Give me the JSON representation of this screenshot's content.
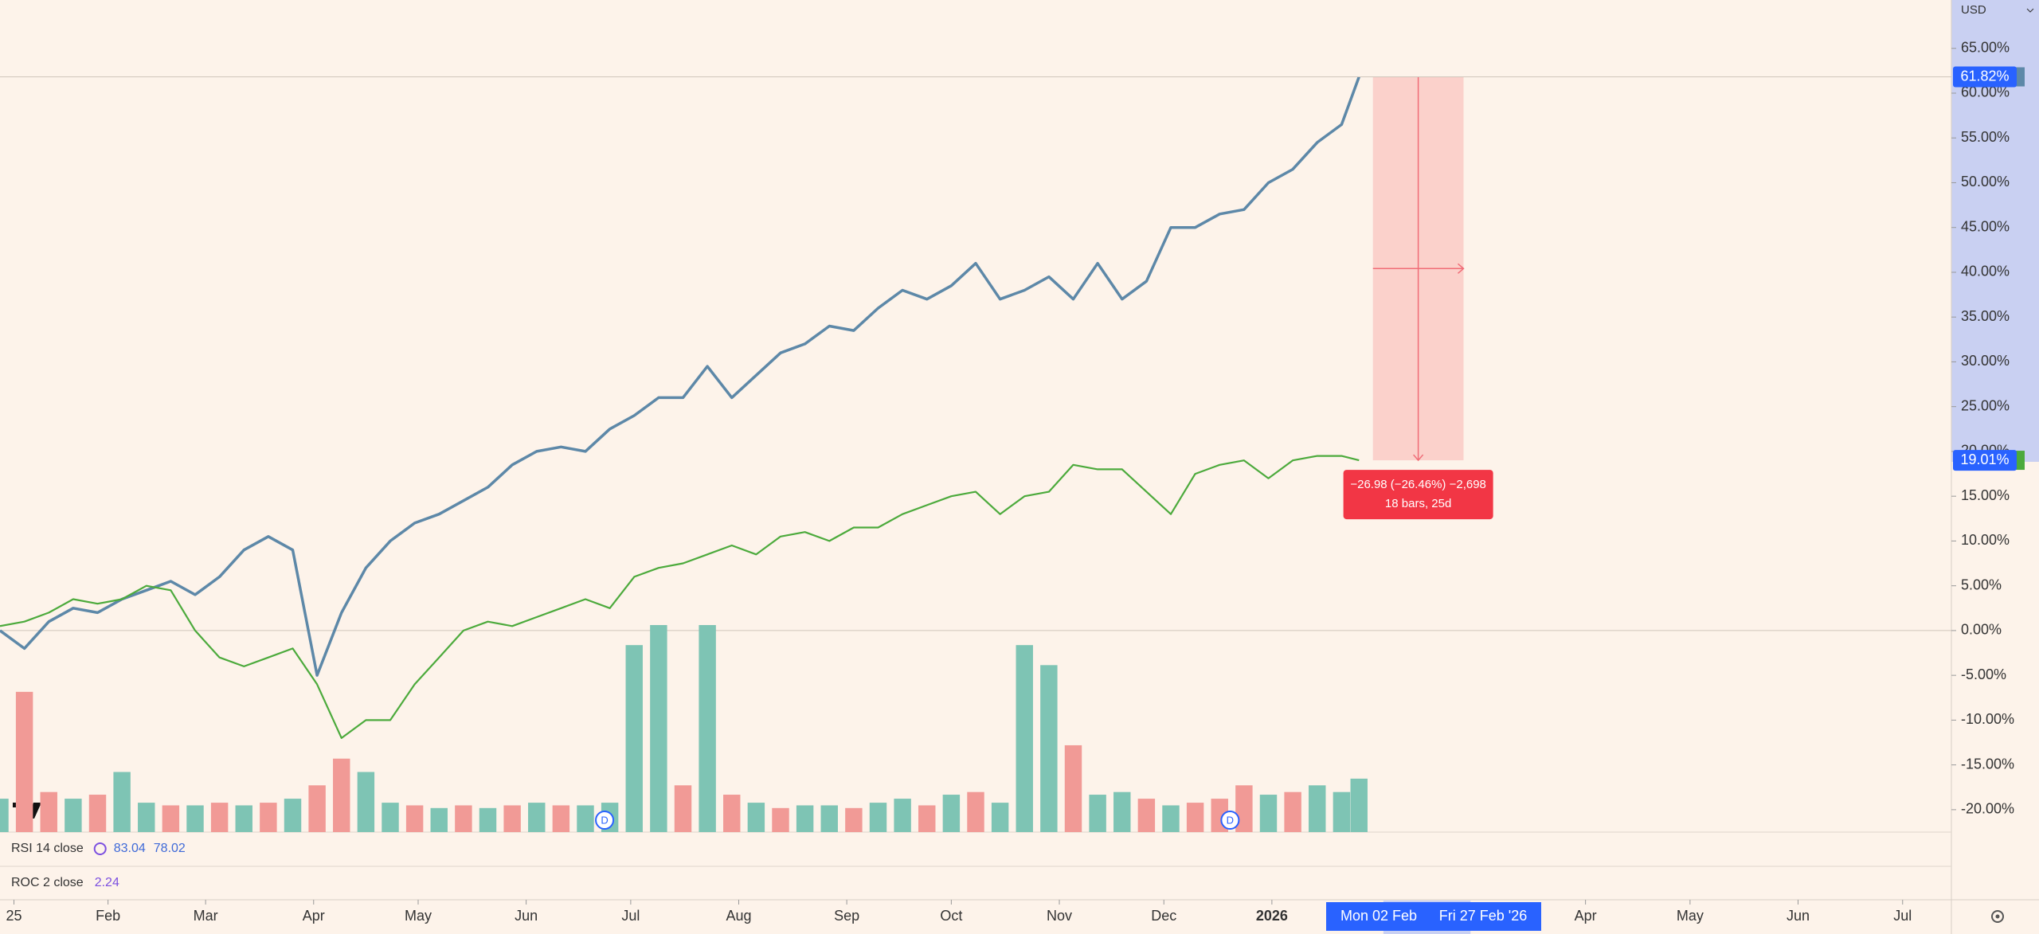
{
  "chart_data": {
    "type": "line",
    "currency": "USD",
    "x": [
      0,
      7,
      14,
      21,
      28,
      35,
      42,
      49,
      56,
      63,
      70,
      77,
      84,
      91,
      98,
      105,
      112,
      119,
      126,
      133,
      140,
      147,
      154,
      161,
      168,
      175,
      182,
      189,
      196,
      203,
      210,
      217,
      224,
      231,
      238,
      245,
      252,
      259,
      266,
      273,
      280,
      287,
      294,
      301,
      308,
      315,
      322,
      329,
      336,
      343,
      350,
      357,
      364,
      371,
      378,
      385,
      390
    ],
    "xlim": [
      0,
      560
    ],
    "xticks": [
      {
        "value": 4,
        "label": "25"
      },
      {
        "value": 31,
        "label": "Feb"
      },
      {
        "value": 59,
        "label": "Mar"
      },
      {
        "value": 90,
        "label": "Apr"
      },
      {
        "value": 120,
        "label": "May"
      },
      {
        "value": 151,
        "label": "Jun"
      },
      {
        "value": 181,
        "label": "Jul"
      },
      {
        "value": 212,
        "label": "Aug"
      },
      {
        "value": 243,
        "label": "Sep"
      },
      {
        "value": 273,
        "label": "Oct"
      },
      {
        "value": 304,
        "label": "Nov"
      },
      {
        "value": 334,
        "label": "Dec"
      },
      {
        "value": 365,
        "label": "2026"
      },
      {
        "value": 455,
        "label": "Apr"
      },
      {
        "value": 485,
        "label": "May"
      },
      {
        "value": 516,
        "label": "Jun"
      },
      {
        "value": 546,
        "label": "Jul"
      }
    ],
    "range": {
      "from": 397,
      "to": 422,
      "labels": [
        "Mon 02 Feb",
        "Fri 27 Feb '26"
      ]
    },
    "ylim": [
      -22.5,
      70.4
    ],
    "yticks": [
      {
        "value": 65,
        "label": "65.00%"
      },
      {
        "value": 60,
        "label": "60.00%"
      },
      {
        "value": 55,
        "label": "55.00%"
      },
      {
        "value": 50,
        "label": "50.00%"
      },
      {
        "value": 45,
        "label": "45.00%"
      },
      {
        "value": 40,
        "label": "40.00%"
      },
      {
        "value": 35,
        "label": "35.00%"
      },
      {
        "value": 30,
        "label": "30.00%"
      },
      {
        "value": 25,
        "label": "25.00%"
      },
      {
        "value": 20,
        "label": "20.00%"
      },
      {
        "value": 15,
        "label": "15.00%"
      },
      {
        "value": 10,
        "label": "10.00%"
      },
      {
        "value": 5,
        "label": "5.00%"
      },
      {
        "value": 0,
        "label": "0.00%"
      },
      {
        "value": -5,
        "label": "-5.00%"
      },
      {
        "value": -10,
        "label": "-10.00%"
      },
      {
        "value": -15,
        "label": "-15.00%"
      },
      {
        "value": -20,
        "label": "-20.00%"
      }
    ],
    "series": [
      {
        "color": "#5d88a8",
        "last": {
          "value": 61.82,
          "label": "61.82%"
        },
        "values": [
          0,
          -2,
          1,
          2.5,
          2,
          3.5,
          4.5,
          5.5,
          4,
          6,
          9,
          10.5,
          9,
          -5,
          2,
          7,
          10,
          12,
          13,
          14.5,
          16,
          18.5,
          20,
          20.5,
          20,
          22.5,
          24,
          26,
          26,
          29.5,
          26,
          28.5,
          31,
          32,
          34,
          33.5,
          36,
          38,
          37,
          38.5,
          41,
          37,
          38,
          39.5,
          37,
          41,
          37,
          39,
          45,
          45,
          46.5,
          47,
          50,
          51.5,
          54.5,
          56.5,
          61.82
        ]
      },
      {
        "color": "#4caa3c",
        "last": {
          "value": 19.01,
          "label": "19.01%"
        },
        "values": [
          0.5,
          1,
          2,
          3.5,
          3,
          3.5,
          5,
          4.5,
          0,
          -3,
          -4,
          -3,
          -2,
          -6,
          -12,
          -10,
          -10,
          -6,
          -3,
          0,
          1,
          0.5,
          1.5,
          2.5,
          3.5,
          2.5,
          6,
          7,
          7.5,
          8.5,
          9.5,
          8.5,
          10.5,
          11,
          10,
          11.5,
          11.5,
          13,
          14,
          15,
          15.5,
          13,
          15,
          15.5,
          18.5,
          18,
          18,
          15.5,
          13,
          17.5,
          18.5,
          19,
          17,
          19,
          19.5,
          19.5,
          19.01
        ]
      }
    ],
    "volume": {
      "values": [
        25,
        105,
        30,
        25,
        28,
        45,
        22,
        20,
        20,
        22,
        20,
        22,
        25,
        35,
        55,
        45,
        22,
        20,
        18,
        20,
        18,
        20,
        22,
        20,
        20,
        22,
        140,
        155,
        35,
        155,
        28,
        22,
        18,
        20,
        20,
        18,
        22,
        25,
        20,
        28,
        30,
        22,
        140,
        125,
        65,
        28,
        30,
        25,
        20,
        22,
        25,
        35,
        28,
        30,
        35,
        30,
        40
      ],
      "colors": [
        "#7ec4b4",
        "#f19a96",
        "#f19a96",
        "#7ec4b4",
        "#f19a96",
        "#7ec4b4",
        "#7ec4b4",
        "#f19a96",
        "#7ec4b4",
        "#f19a96",
        "#7ec4b4",
        "#f19a96",
        "#7ec4b4",
        "#f19a96",
        "#f19a96",
        "#7ec4b4",
        "#7ec4b4",
        "#f19a96",
        "#7ec4b4",
        "#f19a96",
        "#7ec4b4",
        "#f19a96",
        "#7ec4b4",
        "#f19a96",
        "#7ec4b4",
        "#7ec4b4",
        "#7ec4b4",
        "#7ec4b4",
        "#f19a96",
        "#7ec4b4",
        "#f19a96",
        "#7ec4b4",
        "#f19a96",
        "#7ec4b4",
        "#7ec4b4",
        "#f19a96",
        "#7ec4b4",
        "#7ec4b4",
        "#f19a96",
        "#7ec4b4",
        "#f19a96",
        "#7ec4b4",
        "#7ec4b4",
        "#7ec4b4",
        "#f19a96",
        "#7ec4b4",
        "#7ec4b4",
        "#f19a96",
        "#7ec4b4",
        "#f19a96",
        "#f19a96",
        "#f19a96",
        "#7ec4b4",
        "#f19a96",
        "#7ec4b4",
        "#7ec4b4",
        "#7ec4b4"
      ]
    },
    "events": [
      {
        "x": 173.5,
        "label": "D"
      },
      {
        "x": 353,
        "label": "D"
      }
    ],
    "measure": {
      "from": 394,
      "to": 420,
      "label_1": "−26.98 (−26.46%) −2,698",
      "label_2": "18 bars, 25d"
    },
    "indicators": [
      {
        "name": "RSI 14 close",
        "values": [
          83.04,
          78.02
        ],
        "colors": [
          "#3f6ad8",
          "#3f6ad8"
        ]
      },
      {
        "name": "ROC 2 close",
        "values": [
          2.24
        ],
        "colors": [
          "#7b4fe0"
        ]
      }
    ]
  }
}
